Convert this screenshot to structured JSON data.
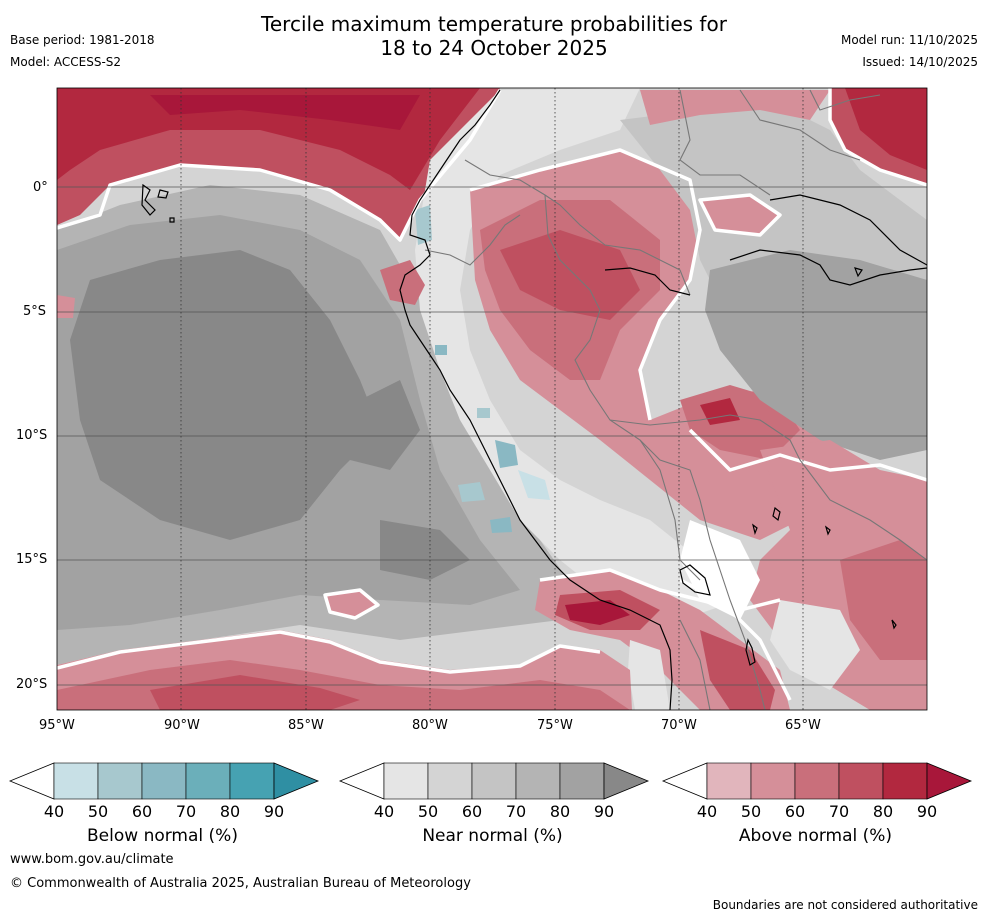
{
  "title": {
    "line1": "Tercile maximum temperature probabilities for",
    "line2": "18 to 24 October 2025"
  },
  "meta": {
    "base_period": "Base period: 1981-2018",
    "model": "Model: ACCESS-S2",
    "model_run": "Model run: 11/10/2025",
    "issued": "Issued: 14/10/2025"
  },
  "map": {
    "lon_labels": [
      "95°W",
      "90°W",
      "85°W",
      "80°W",
      "75°W",
      "70°W",
      "65°W"
    ],
    "lat_labels": [
      "0°",
      "5°S",
      "10°S",
      "15°S",
      "20°S"
    ],
    "lon_range": [
      -95,
      -60
    ],
    "lat_range": [
      -21,
      4
    ]
  },
  "colorbars": [
    {
      "label": "Below normal (%)",
      "ticks": [
        "40",
        "50",
        "60",
        "70",
        "80",
        "90"
      ],
      "colors": [
        "#ffffff",
        "#c8e0e6",
        "#a7c8ce",
        "#8ab8c3",
        "#6bafba",
        "#46a2b2",
        "#2f8fa3"
      ]
    },
    {
      "label": "Near normal (%)",
      "ticks": [
        "40",
        "50",
        "60",
        "70",
        "80",
        "90"
      ],
      "colors": [
        "#ffffff",
        "#e5e5e5",
        "#d4d4d4",
        "#c4c4c4",
        "#b4b4b4",
        "#a2a2a2",
        "#888888"
      ]
    },
    {
      "label": "Above normal (%)",
      "ticks": [
        "40",
        "50",
        "60",
        "70",
        "80",
        "90"
      ],
      "colors": [
        "#ffffff",
        "#e1b5bc",
        "#d58f99",
        "#c96f7b",
        "#bf5060",
        "#b2283f",
        "#a8173a"
      ]
    }
  ],
  "footer": {
    "url": "www.bom.gov.au/climate",
    "copyright": "© Commonwealth of Australia 2025, Australian Bureau of Meteorology",
    "disclaimer": "Boundaries are not considered authoritative"
  }
}
